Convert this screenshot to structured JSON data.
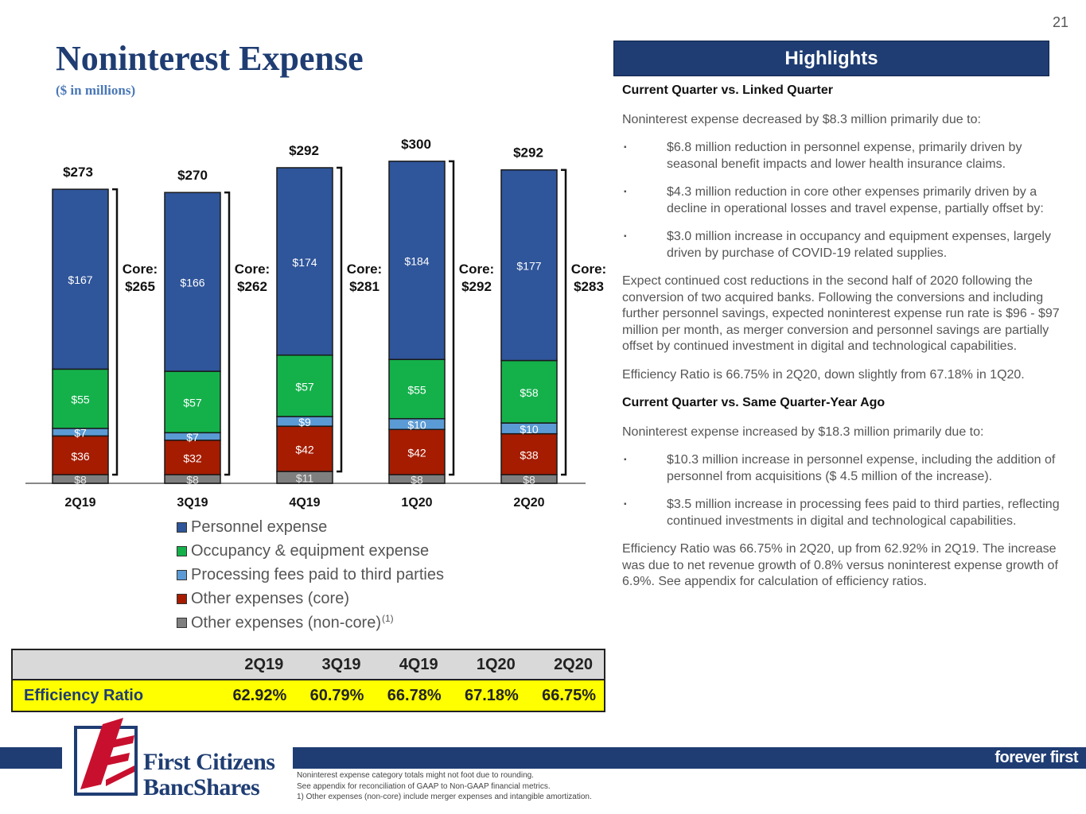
{
  "page_number": "21",
  "title": "Noninterest Expense",
  "subtitle": "($ in millions)",
  "chart_data": {
    "type": "bar",
    "stacked": true,
    "categories": [
      "2Q19",
      "3Q19",
      "4Q19",
      "1Q20",
      "2Q20"
    ],
    "series": [
      {
        "name": "Other expenses (non-core)",
        "values": [
          8,
          8,
          11,
          8,
          8
        ],
        "labels": [
          "$8",
          "$8",
          "$11",
          "$8",
          "$8"
        ],
        "color": "#7f7f7f"
      },
      {
        "name": "Other expenses (core)",
        "values": [
          36,
          32,
          42,
          42,
          38
        ],
        "labels": [
          "$36",
          "$32",
          "$42",
          "$42",
          "$38"
        ],
        "color": "#a51c00"
      },
      {
        "name": "Processing fees paid to third parties",
        "values": [
          7,
          7,
          9,
          10,
          10
        ],
        "labels": [
          "$7",
          "$7",
          "$9",
          "$10",
          "$10"
        ],
        "color": "#5b9bd5"
      },
      {
        "name": "Occupancy & equipment expense",
        "values": [
          55,
          57,
          57,
          55,
          58
        ],
        "labels": [
          "$55",
          "$57",
          "$57",
          "$55",
          "$58"
        ],
        "color": "#14b14b"
      },
      {
        "name": "Personnel expense",
        "values": [
          167,
          166,
          174,
          184,
          177
        ],
        "labels": [
          "$167",
          "$166",
          "$174",
          "$184",
          "$177"
        ],
        "color": "#2f559a"
      }
    ],
    "totals": [
      "$273",
      "$270",
      "$292",
      "$300",
      "$292"
    ],
    "core_label": "Core:",
    "core_values": [
      "$265",
      "$262",
      "$281",
      "$292",
      "$283"
    ],
    "legend_order": [
      "Personnel expense",
      "Occupancy & equipment expense",
      "Processing fees paid to third parties",
      "Other expenses (core)",
      "Other expenses (non-core)"
    ],
    "legend_footnote_mark": "(1)",
    "legend_placement": "bottom",
    "grid": false
  },
  "efficiency_table": {
    "row_label": "Efficiency Ratio",
    "quarters": [
      "2Q19",
      "3Q19",
      "4Q19",
      "1Q20",
      "2Q20"
    ],
    "values": [
      "62.92%",
      "60.79%",
      "66.78%",
      "67.18%",
      "66.75%"
    ]
  },
  "highlights": {
    "header": "Highlights",
    "section1_title": "Current Quarter vs. Linked Quarter",
    "section1_intro": "Noninterest expense decreased by $8.3 million primarily due to:",
    "section1_bullets": [
      "$6.8 million reduction in personnel expense, primarily driven by seasonal benefit impacts and lower health insurance claims.",
      "$4.3 million reduction in core other expenses primarily driven by a decline in operational losses and travel expense, partially offset by:",
      "$3.0 million increase in occupancy and equipment expenses, largely driven by purchase of COVID-19 related supplies."
    ],
    "section1_para1": "Expect continued cost reductions in the second half of 2020 following the conversion of two acquired banks. Following the conversions and including further personnel savings, expected noninterest expense run rate is $96 - $97 million per month, as merger conversion and personnel savings are partially offset by continued investment in digital and technological capabilities.",
    "section1_para2": "Efficiency Ratio is 66.75% in 2Q20, down slightly from 67.18% in 1Q20.",
    "section2_title": "Current Quarter vs. Same Quarter-Year Ago",
    "section2_intro": "Noninterest expense increased by $18.3 million primarily due to:",
    "section2_bullets": [
      "$10.3 million increase in personnel expense, including the addition of personnel from acquisitions ($ 4.5 million of the increase).",
      "$3.5 million increase in processing fees paid to third parties, reflecting continued investments in digital and technological capabilities."
    ],
    "section2_para": "Efficiency Ratio was 66.75% in 2Q20, up from 62.92% in 2Q19. The increase was due to net revenue growth of 0.8% versus noninterest expense growth of 6.9%.  See appendix for calculation of efficiency ratios.",
    "bullet_glyph": "▪"
  },
  "footer": {
    "logo_line1": "First Citizens",
    "logo_line2": "BancShares",
    "tagline": "forever first",
    "footnotes": [
      "Noninterest expense category totals might not foot due to rounding.",
      "See appendix for reconciliation of GAAP to Non-GAAP financial metrics.",
      "1) Other expenses (non-core) include merger expenses and intangible amortization."
    ]
  },
  "colors": {
    "brand_navy": "#1f3d73",
    "title_blue": "#1f3d73",
    "subtitle_blue": "#4a78b7",
    "table_highlight": "#ffff00",
    "table_header": "#d9d9d9"
  }
}
